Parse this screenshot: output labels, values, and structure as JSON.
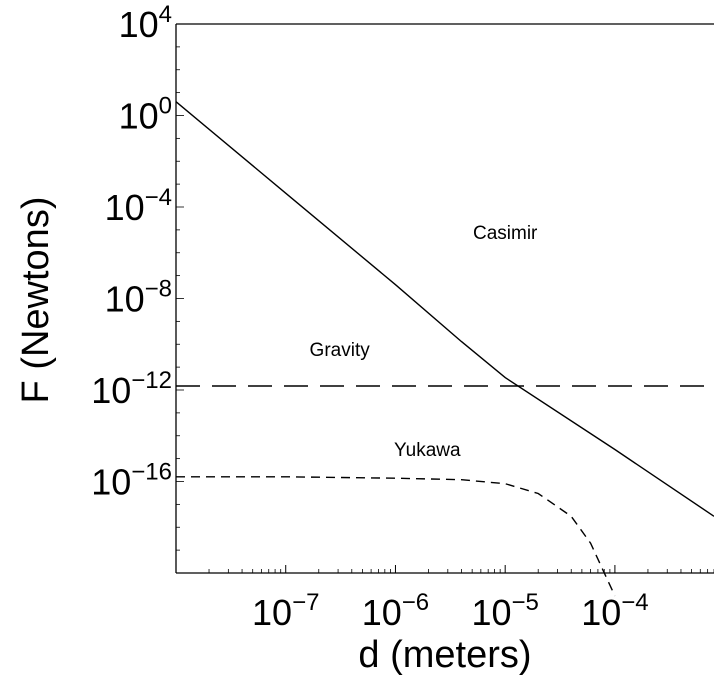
{
  "chart_data": {
    "type": "line",
    "xlabel": "d (meters)",
    "ylabel": "F (Newtons)",
    "xscale": "log",
    "yscale": "log",
    "xlim": [
      1e-08,
      0.0008
    ],
    "ylim": [
      1e-20,
      10000
    ],
    "x_ticks": [
      {
        "value": 1e-07,
        "base": "10",
        "exp": "−7"
      },
      {
        "value": 1e-06,
        "base": "10",
        "exp": "−6"
      },
      {
        "value": 1e-05,
        "base": "10",
        "exp": "−5"
      },
      {
        "value": 0.0001,
        "base": "10",
        "exp": "−4"
      }
    ],
    "y_ticks": [
      {
        "value": 10000,
        "base": "10",
        "exp": "4"
      },
      {
        "value": 1,
        "base": "10",
        "exp": "0"
      },
      {
        "value": 0.0001,
        "base": "10",
        "exp": "−4"
      },
      {
        "value": 1e-08,
        "base": "10",
        "exp": "−8"
      },
      {
        "value": 1e-12,
        "base": "10",
        "exp": "−12"
      },
      {
        "value": 1e-16,
        "base": "10",
        "exp": "−16"
      }
    ],
    "grid": false,
    "series": [
      {
        "name": "Casimir",
        "style": "solid",
        "x": [
          1e-08,
          1e-07,
          1e-06,
          4e-06,
          1e-05,
          0.0001,
          0.0008
        ],
        "y": [
          4,
          0.0004,
          4e-08,
          1.3e-10,
          3.5e-12,
          2.5e-15,
          3e-18
        ]
      },
      {
        "name": "Gravity",
        "style": "long-dash",
        "x": [
          1e-08,
          0.0008
        ],
        "y": [
          1.5e-12,
          1.5e-12
        ]
      },
      {
        "name": "Yukawa",
        "style": "short-dash",
        "x": [
          1e-08,
          1e-07,
          1e-06,
          4e-06,
          1e-05,
          2e-05,
          4e-05,
          6e-05,
          8e-05,
          0.0001
        ],
        "y": [
          1.6e-16,
          1.6e-16,
          1.4e-16,
          1.2e-16,
          8e-17,
          3e-17,
          3e-18,
          2e-19,
          1e-20,
          1e-21
        ]
      }
    ]
  }
}
